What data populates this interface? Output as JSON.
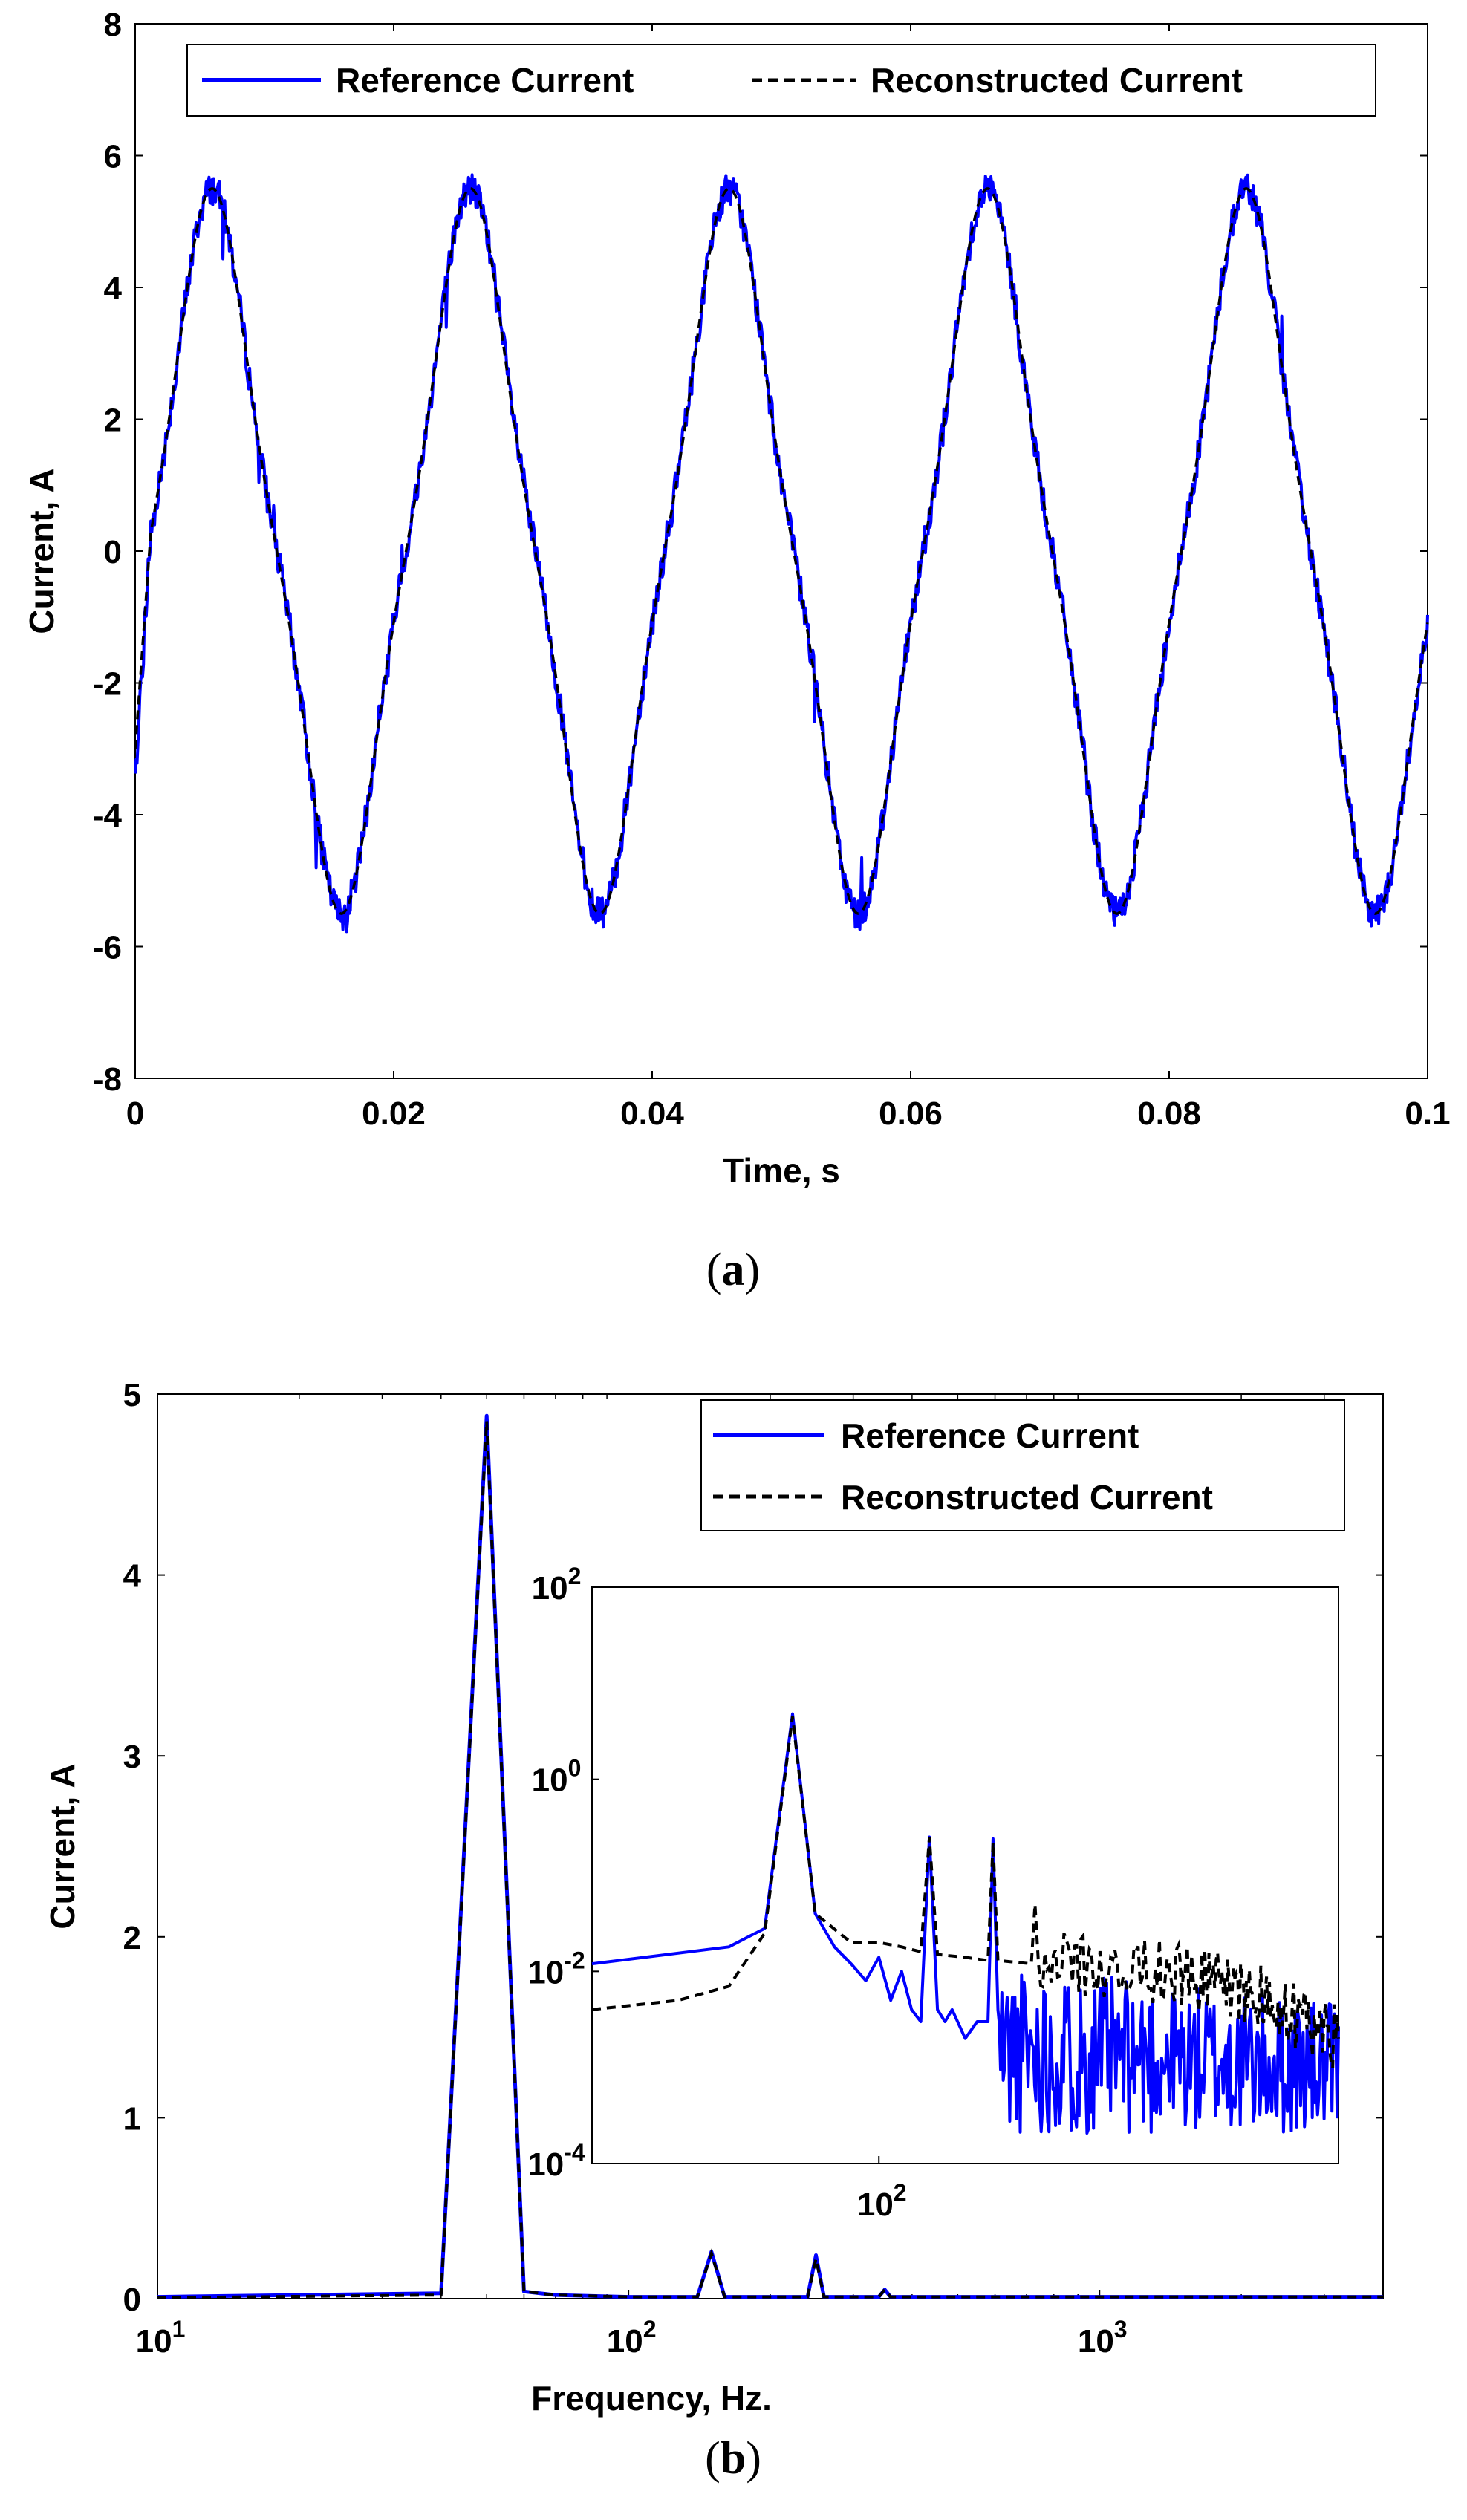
{
  "chart_data": [
    {
      "type": "line",
      "panel": "a",
      "caption": [
        "(",
        "a",
        ")"
      ],
      "xlabel": "Time, s",
      "ylabel": "Current, A",
      "xlim": [
        0,
        0.1
      ],
      "ylim": [
        -8,
        8
      ],
      "x_ticks": [
        "0",
        "0.02",
        "0.04",
        "0.06",
        "0.08",
        "0.1"
      ],
      "y_ticks": [
        "-8",
        "-6",
        "-4",
        "-2",
        "0",
        "2",
        "4",
        "6",
        "8"
      ],
      "legend": [
        "Reference Current",
        "Reconstructed Current"
      ],
      "legend_position": "top-right",
      "series": [
        {
          "name": "Reference Current",
          "style": "solid",
          "color": "#0000ff",
          "model": {
            "amplitude": 5.0,
            "frequency_hz": 50,
            "third_harmonic": 0.25,
            "start": -3.4,
            "noise": 0.25
          }
        },
        {
          "name": "Reconstructed Current",
          "style": "dashed",
          "color": "#000000",
          "model": {
            "amplitude": 5.0,
            "frequency_hz": 50,
            "third_harmonic": 0.25,
            "start": -3.0
          }
        }
      ],
      "peaks": [
        {
          "t": 0.006,
          "value": 5.1
        },
        {
          "t": 0.026,
          "value": 5.2
        },
        {
          "t": 0.046,
          "value": 5.1
        },
        {
          "t": 0.066,
          "value": 5.1
        },
        {
          "t": 0.086,
          "value": 5.1
        }
      ],
      "troughs": [
        {
          "t": 0.016,
          "value": -4.9
        },
        {
          "t": 0.036,
          "value": -5.0
        },
        {
          "t": 0.056,
          "value": -4.9
        },
        {
          "t": 0.076,
          "value": -4.9
        },
        {
          "t": 0.096,
          "value": -4.9
        }
      ]
    },
    {
      "type": "line",
      "panel": "b",
      "caption": [
        "(",
        "b",
        ")"
      ],
      "xlabel": "Frequency, Hz.",
      "ylabel": "Current, A",
      "xscale": "log",
      "xlim": [
        10,
        4000
      ],
      "ylim": [
        0,
        5
      ],
      "x_ticks": [
        {
          "base": "10",
          "exp": "1"
        },
        {
          "base": "10",
          "exp": "2"
        },
        {
          "base": "10",
          "exp": "3"
        }
      ],
      "y_ticks": [
        "0",
        "1",
        "2",
        "3",
        "4",
        "5"
      ],
      "legend": [
        "Reference Current",
        "Reconstructed Current"
      ],
      "legend_position": "top-right",
      "series": [
        {
          "name": "Reference Current",
          "style": "solid",
          "color": "#0000ff",
          "x": [
            10,
            40,
            50,
            60,
            70,
            100,
            140,
            150,
            160,
            240,
            250,
            260,
            340,
            350,
            360,
            500,
            1000,
            2000,
            4000
          ],
          "y": [
            0.01,
            0.03,
            4.88,
            0.04,
            0.02,
            0.01,
            0.01,
            0.26,
            0.01,
            0.01,
            0.24,
            0.01,
            0.01,
            0.05,
            0.01,
            0.01,
            0.01,
            0.01,
            0.01
          ]
        },
        {
          "name": "Reconstructed Current",
          "style": "dashed",
          "color": "#000000",
          "x": [
            10,
            40,
            50,
            60,
            70,
            100,
            140,
            150,
            160,
            240,
            250,
            260,
            340,
            350,
            360,
            500,
            1000,
            2000,
            4000
          ],
          "y": [
            0.005,
            0.02,
            4.85,
            0.04,
            0.02,
            0.01,
            0.01,
            0.25,
            0.01,
            0.01,
            0.22,
            0.01,
            0.01,
            0.05,
            0.01,
            0.01,
            0.01,
            0.01,
            0.01
          ]
        }
      ],
      "inset": {
        "type": "line",
        "xscale": "log",
        "yscale": "log",
        "xlim": [
          10,
          4000
        ],
        "ylim": [
          0.0001,
          100
        ],
        "x_ticks": [
          {
            "base": "10",
            "exp": "2"
          }
        ],
        "y_ticks": [
          {
            "base": "10",
            "exp": "2"
          },
          {
            "base": "10",
            "exp": "0"
          },
          {
            "base": "10",
            "exp": "-2"
          },
          {
            "base": "10",
            "exp": "-4"
          }
        ],
        "series": [
          {
            "name": "Reference Current",
            "style": "solid",
            "color": "#0000ff",
            "x": [
              10,
              30,
              40,
              50,
              60,
              70,
              80,
              90,
              100,
              110,
              120,
              130,
              140,
              150,
              160,
              170,
              180,
              200,
              220,
              240,
              250,
              260
            ],
            "y": [
              0.012,
              0.018,
              0.028,
              4.8,
              0.04,
              0.018,
              0.012,
              0.008,
              0.014,
              0.005,
              0.01,
              0.004,
              0.003,
              0.25,
              0.004,
              0.003,
              0.004,
              0.002,
              0.003,
              0.003,
              0.24,
              0.004
            ],
            "noise_band": {
              "from_hz": 260,
              "to_hz": 4000,
              "upper": 0.012,
              "lower": 0.0002
            }
          },
          {
            "name": "Reconstructed Current",
            "style": "dashed",
            "color": "#000000",
            "x": [
              10,
              20,
              30,
              40,
              50,
              60,
              80,
              100,
              120,
              140,
              150,
              160,
              200,
              240,
              250,
              260,
              340,
              350,
              360,
              1000,
              2000,
              4000
            ],
            "y": [
              0.004,
              0.005,
              0.007,
              0.025,
              4.5,
              0.04,
              0.02,
              0.02,
              0.018,
              0.016,
              0.25,
              0.015,
              0.014,
              0.013,
              0.22,
              0.013,
              0.012,
              0.05,
              0.012,
              0.01,
              0.006,
              0.002
            ]
          }
        ]
      }
    }
  ]
}
